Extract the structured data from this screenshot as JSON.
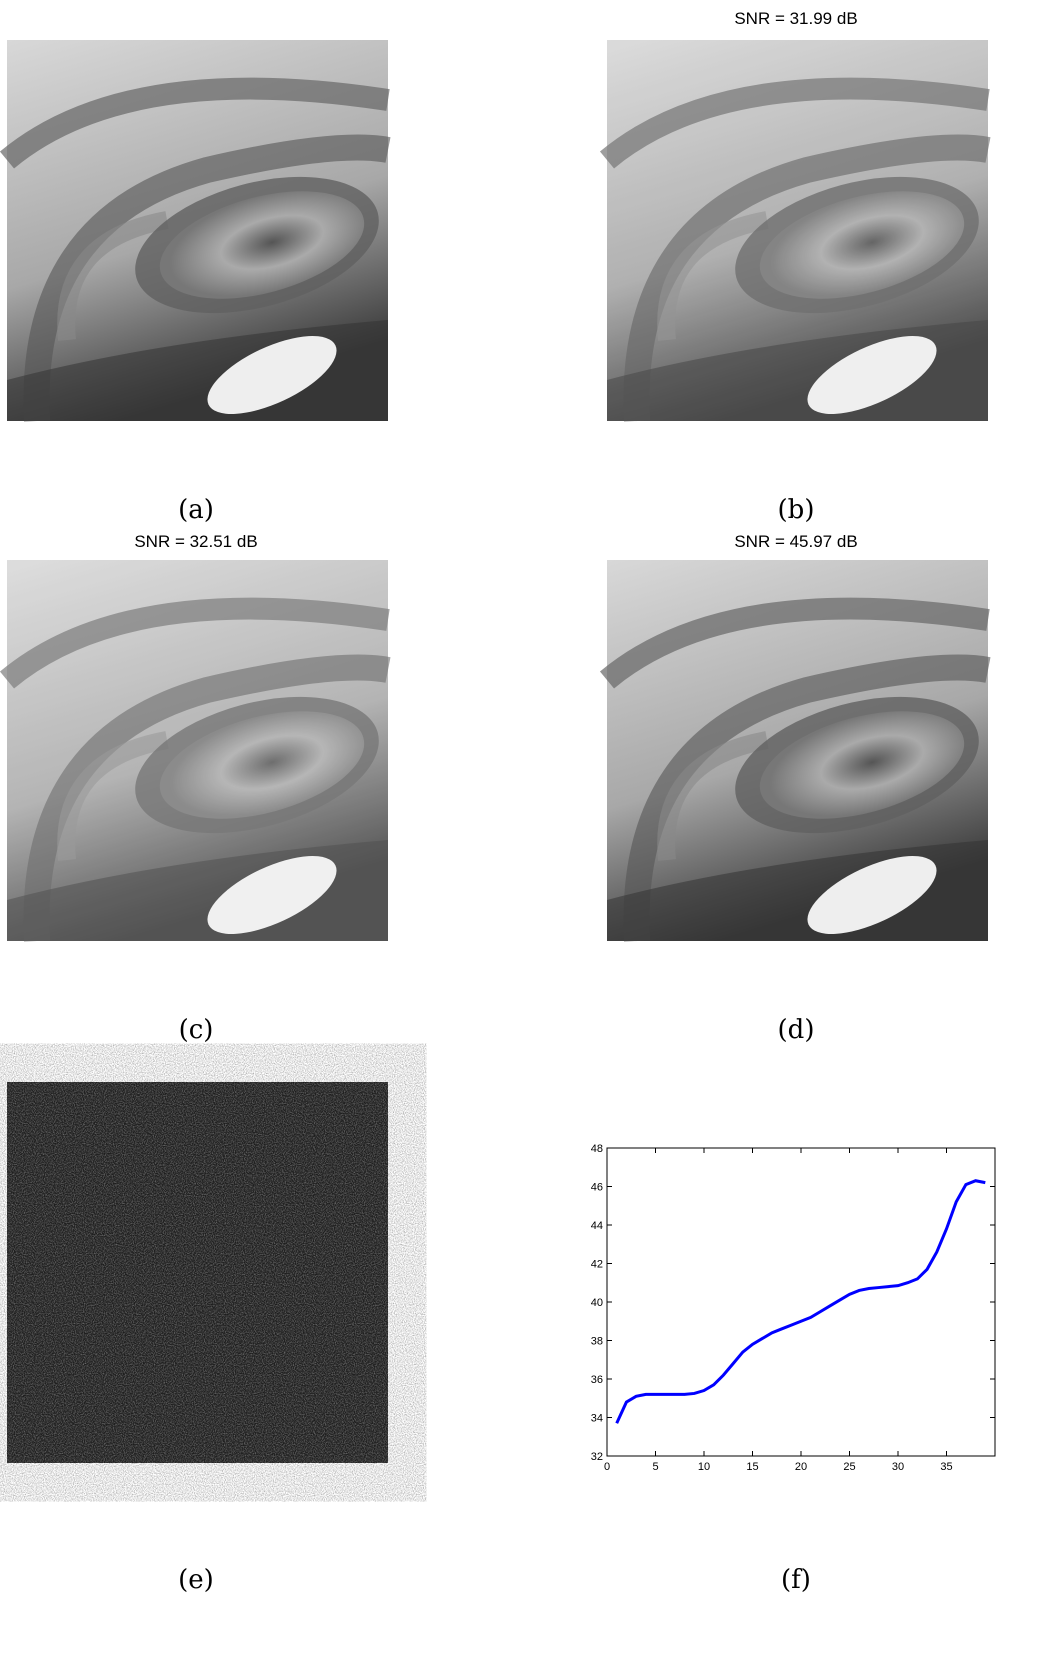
{
  "panels": [
    {
      "caption": "(a)"
    },
    {
      "caption": "(b)",
      "title": "SNR = 31.99 dB"
    },
    {
      "caption": "(c)",
      "title": "SNR = 32.51 dB"
    },
    {
      "caption": "(d)",
      "title": "SNR = 45.97 dB"
    },
    {
      "caption": "(e)"
    },
    {
      "caption": "(f)"
    }
  ],
  "chart_data": {
    "type": "line",
    "x": [
      1,
      2,
      3,
      4,
      5,
      6,
      7,
      8,
      9,
      10,
      11,
      12,
      13,
      14,
      15,
      16,
      17,
      18,
      19,
      20,
      21,
      22,
      23,
      24,
      25,
      26,
      27,
      28,
      29,
      30,
      31,
      32,
      33,
      34,
      35,
      36,
      37,
      38,
      39
    ],
    "series": [
      {
        "color": "#0000ff",
        "values": [
          33.7,
          34.8,
          35.1,
          35.2,
          35.2,
          35.2,
          35.2,
          35.2,
          35.25,
          35.4,
          35.7,
          36.2,
          36.8,
          37.4,
          37.8,
          38.1,
          38.4,
          38.6,
          38.8,
          39.0,
          39.2,
          39.5,
          39.8,
          40.1,
          40.4,
          40.6,
          40.7,
          40.75,
          40.8,
          40.85,
          41.0,
          41.2,
          41.7,
          42.6,
          43.8,
          45.2,
          46.1,
          46.3,
          46.2
        ]
      }
    ],
    "xlim": [
      0,
      40
    ],
    "ylim": [
      32,
      48
    ],
    "xticks": [
      0,
      5,
      10,
      15,
      20,
      25,
      30,
      35
    ],
    "yticks": [
      32,
      34,
      36,
      38,
      40,
      42,
      44,
      46,
      48
    ]
  }
}
